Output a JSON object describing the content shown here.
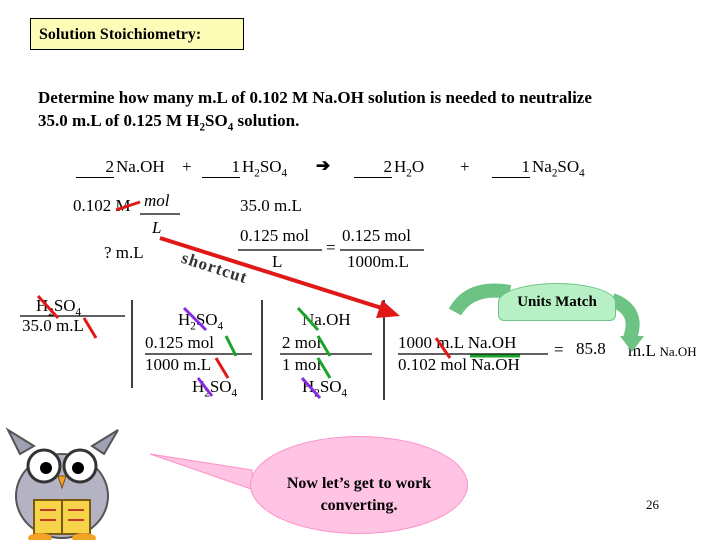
{
  "title": "Solution Stoichiometry:",
  "question": {
    "line1": "Determine how many m.L of 0.102 M Na.OH solution is needed to neutralize",
    "line2_pre": "35.0 m.L of 0.125 M H",
    "line2_sub1": "2",
    "line2_mid": "SO",
    "line2_sub2": "4",
    "line2_post": " solution."
  },
  "equation": {
    "c1": "2",
    "s1": "Na.OH",
    "plus1": "+",
    "c2": "1",
    "s2a": "H",
    "s2sub1": "2",
    "s2b": "SO",
    "s2sub2": "4",
    "arrow": "➔",
    "c3": "2",
    "s3a": "H",
    "s3sub": "2",
    "s3b": "O",
    "plus2": "+",
    "c4": "1",
    "s4a": "Na",
    "s4sub1": "2",
    "s4b": "SO",
    "s4sub2": "4"
  },
  "shortcut_block": {
    "molarity": "0.102 M",
    "mol": "mol",
    "L": "L",
    "unknown": "? m.L",
    "given": "35.0 m.L",
    "frac1_num": "0.125 mol",
    "frac1_den": "L",
    "equals": "=",
    "frac2_num": "0.125 mol",
    "frac2_den": "1000m.L",
    "shortcut": "shortcut"
  },
  "chain": {
    "col0_top_a": "H",
    "col0_top_sub": "2",
    "col0_top_b": "SO",
    "col0_top_sub2": "4",
    "col0_bottom": "35.0 m.L",
    "col1_top_a": "H",
    "col1_top_sub": "2",
    "col1_top_b": "SO",
    "col1_top_sub2": "4",
    "col1_mid": "0.125 mol",
    "col1_bot": "1000 m.L",
    "col1_last_a": "H",
    "col1_last_sub": "2",
    "col1_last_b": "SO",
    "col1_last_sub2": "4",
    "col2_top": "Na.OH",
    "col2_mid": "2 mol",
    "col2_bot": "1 mol",
    "col2_last_a": "H",
    "col2_last_sub": "2",
    "col2_last_b": "SO",
    "col2_last_sub2": "4",
    "col3_top": "1000 m.L Na.OH",
    "col3_bot": "0.102 mol Na.OH",
    "equals": "=",
    "result": "85.8",
    "unit": "m.L",
    "unit_small": "Na.OH"
  },
  "units_match": "Units Match",
  "callout": {
    "line1": "Now let’s get to work",
    "line2": "converting."
  },
  "page_number": "26",
  "colors": {
    "title_bg": "#fdfdb8",
    "red_arrow": "#e01818",
    "slash_red": "#e01818",
    "slash_green": "#1aa52a",
    "slash_purple": "#8a2be2",
    "callout_bg": "#ffc3e3",
    "units_match_bg": "#b7f0c4"
  }
}
